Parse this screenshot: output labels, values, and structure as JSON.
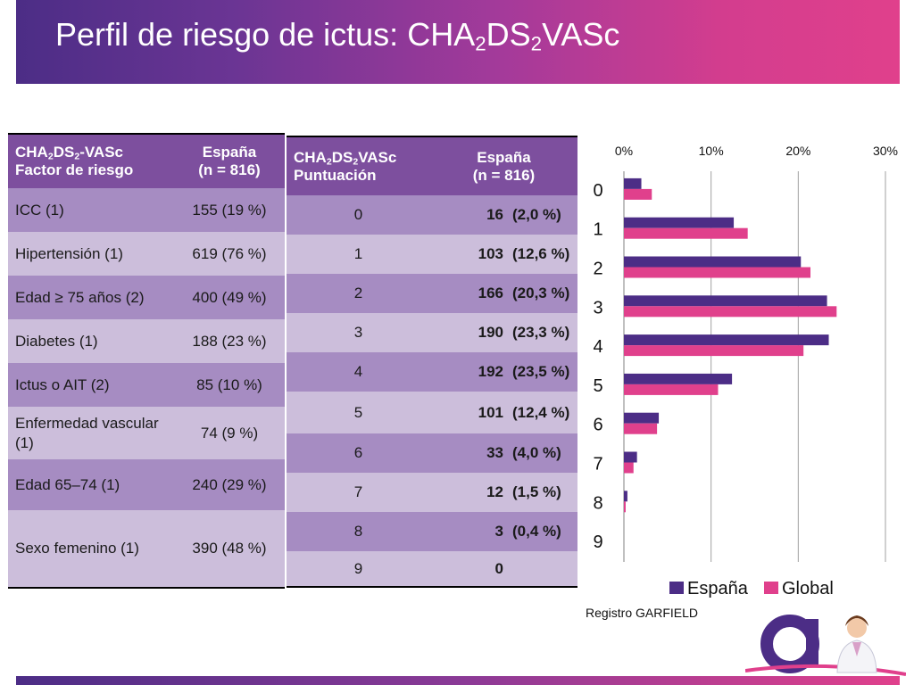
{
  "title": {
    "main": "Perfil de riesgo de ictus: CHA",
    "sub1": "2",
    "mid": "DS",
    "sub2": "2",
    "end": "VASc"
  },
  "risk_table": {
    "header_col1_line1_a": "CHA",
    "header_col1_line1_sub1": "2",
    "header_col1_line1_b": "DS",
    "header_col1_line1_sub2": "2",
    "header_col1_line1_c": "-VASc",
    "header_col1_line2": "Factor de riesgo",
    "header_col2_line1": "España",
    "header_col2_line2": "(n = 816)",
    "rows": [
      {
        "factor": "ICC (1)",
        "value": "155 (19 %)"
      },
      {
        "factor": "Hipertensión (1)",
        "value": "619 (76 %)"
      },
      {
        "factor": "Edad ≥ 75 años (2)",
        "value": "400 (49 %)"
      },
      {
        "factor": "Diabetes  (1)",
        "value": "188 (23 %)"
      },
      {
        "factor": "Ictus o AIT (2)",
        "value": "85 (10 %)"
      },
      {
        "factor": "Enfermedad vascular (1)",
        "value": "74 (9 %)"
      },
      {
        "factor": "Edad 65–74 (1)",
        "value": "240 (29 %)"
      },
      {
        "factor": "Sexo femenino (1)",
        "value": "390 (48 %)"
      }
    ]
  },
  "score_table": {
    "header_col1_line1_a": "CHA",
    "header_col1_line1_sub1": "2",
    "header_col1_line1_b": "DS",
    "header_col1_line1_sub2": "2",
    "header_col1_line1_c": "VASc",
    "header_col1_line2": "Puntuación",
    "header_col2_line1": "España",
    "header_col2_line2": "(n = 816)",
    "rows": [
      {
        "score": "0",
        "count": "16",
        "pct": "(2,0 %)"
      },
      {
        "score": "1",
        "count": "103",
        "pct": "(12,6 %)"
      },
      {
        "score": "2",
        "count": "166",
        "pct": "(20,3 %)"
      },
      {
        "score": "3",
        "count": "190",
        "pct": "(23,3 %)"
      },
      {
        "score": "4",
        "count": "192",
        "pct": "(23,5 %)"
      },
      {
        "score": "5",
        "count": "101",
        "pct": "(12,4 %)"
      },
      {
        "score": "6",
        "count": "33",
        "pct": "(4,0 %)"
      },
      {
        "score": "7",
        "count": "12",
        "pct": "(1,5 %)"
      },
      {
        "score": "8",
        "count": "3",
        "pct": "(0,4 %)"
      },
      {
        "score": "9",
        "count": "0",
        "pct": ""
      }
    ]
  },
  "chart_data": {
    "type": "bar",
    "orientation": "horizontal",
    "categories": [
      "0",
      "1",
      "2",
      "3",
      "4",
      "5",
      "6",
      "7",
      "8",
      "9"
    ],
    "series": [
      {
        "name": "España",
        "values": [
          2.0,
          12.6,
          20.3,
          23.3,
          23.5,
          12.4,
          4.0,
          1.5,
          0.4,
          0
        ],
        "color": "#4c2d86"
      },
      {
        "name": "Global",
        "values": [
          3.2,
          14.2,
          21.4,
          24.4,
          20.6,
          10.8,
          3.8,
          1.1,
          0.2,
          0
        ],
        "color": "#e0408c"
      }
    ],
    "x_ticks": [
      "0%",
      "10%",
      "20%",
      "30%"
    ],
    "xlim": [
      0,
      30
    ],
    "axis_position": "top",
    "grid": true,
    "legend": "bottom",
    "title": "",
    "xlabel": "",
    "ylabel": ""
  },
  "source_note": "Registro GARFIELD",
  "colors": {
    "accent_purple": "#4c2d86",
    "accent_pink": "#e0408c",
    "table_header": "#7d4f9e",
    "row_dark": "#a68cc2",
    "row_light": "#ccbedb"
  }
}
